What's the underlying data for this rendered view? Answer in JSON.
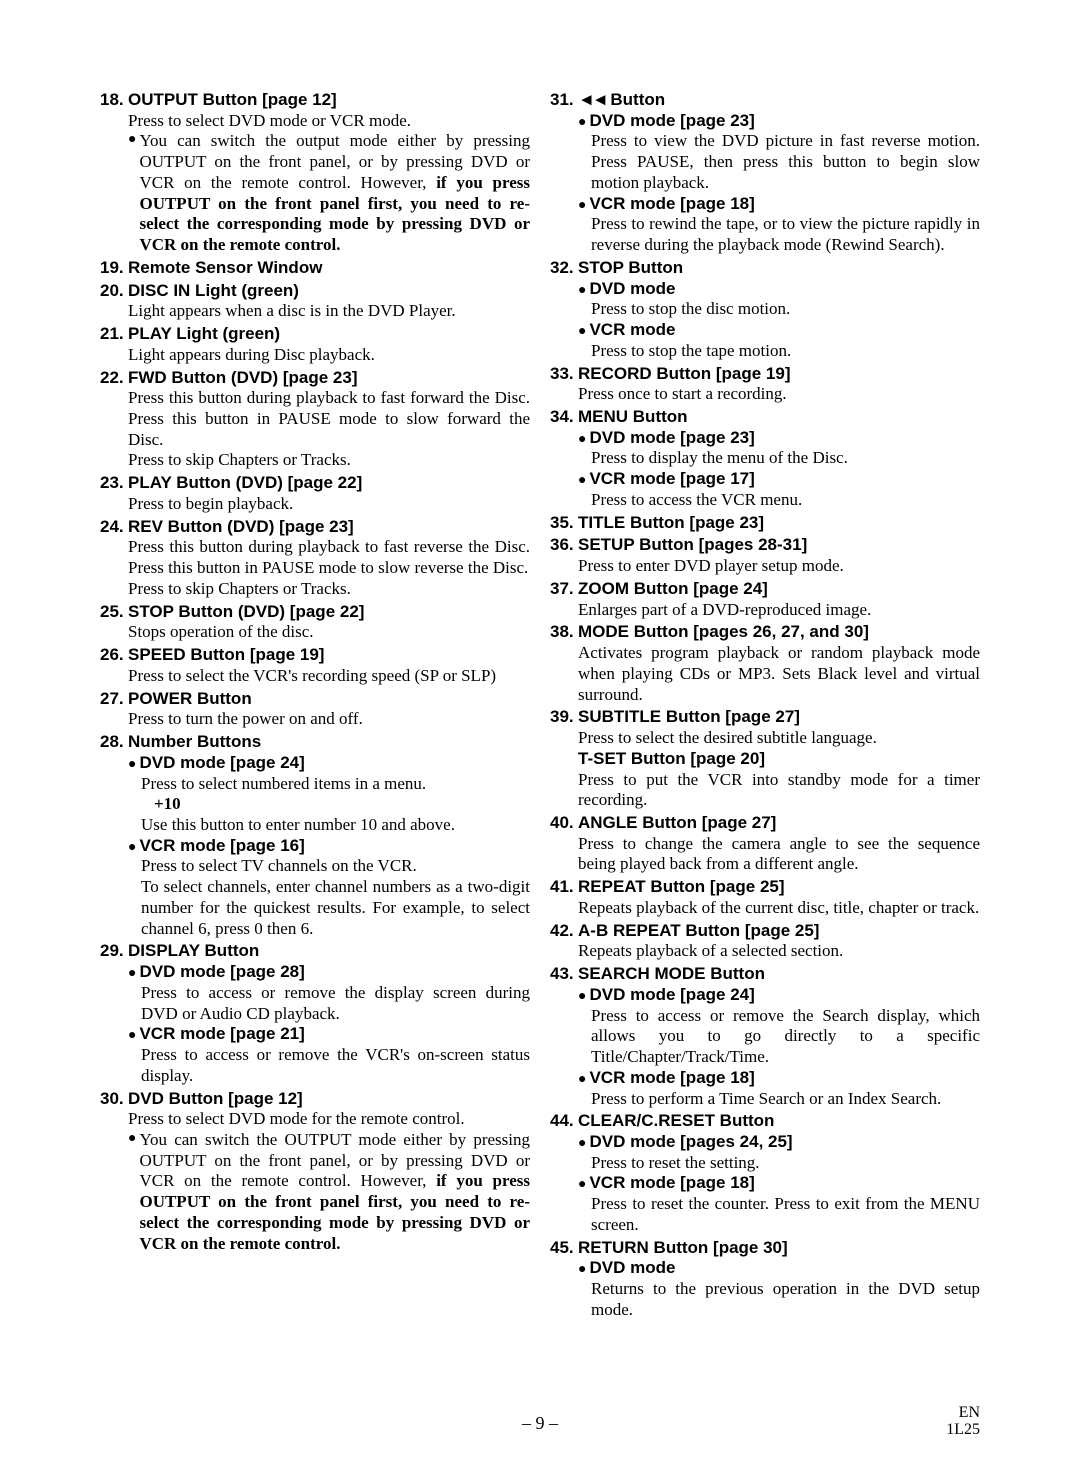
{
  "footer": {
    "page": "– 9 –",
    "en": "EN",
    "code": "1L25"
  },
  "rewind_glyph": "◄◄",
  "left": [
    {
      "n": "18.",
      "t": "OUTPUT Button [page 12]",
      "body": [
        "Press to select DVD mode or VCR mode."
      ],
      "subs": [
        {
          "bullet": true,
          "body": [
            "You can switch the output mode either by pressing OUTPUT on the front panel, or by pressing DVD or VCR on the remote control. However, <b>if you press OUTPUT on the front panel first, you need to re-select the corresponding mode by pressing DVD or VCR on the remote control.</b>"
          ]
        }
      ]
    },
    {
      "n": "19.",
      "t": "Remote Sensor Window"
    },
    {
      "n": "20.",
      "t": "DISC IN Light (green)",
      "body": [
        "Light appears  when a disc is in the DVD Player."
      ]
    },
    {
      "n": "21.",
      "t": "PLAY Light (green)",
      "body": [
        "Light appears during Disc playback."
      ]
    },
    {
      "n": "22.",
      "t": "FWD Button (DVD) [page 23]",
      "body": [
        "Press this button during playback to fast forward the Disc. Press this button in PAUSE mode to slow forward the Disc.",
        "Press to skip Chapters or Tracks."
      ]
    },
    {
      "n": "23.",
      "t": "PLAY Button (DVD) [page 22]",
      "body": [
        "Press to begin playback."
      ]
    },
    {
      "n": "24.",
      "t": "REV Button (DVD) [page 23]",
      "body": [
        "Press this button during playback to  fast reverse the Disc. Press this button in PAUSE mode to slow reverse the Disc.",
        "Press to skip Chapters or Tracks."
      ]
    },
    {
      "n": "25.",
      "t": "STOP Button (DVD) [page 22]",
      "body": [
        "Stops operation of the disc."
      ]
    },
    {
      "n": "26.",
      "t": "SPEED Button [page 19]",
      "body": [
        "Press to select the VCR's recording speed (SP or SLP)"
      ]
    },
    {
      "n": "27.",
      "t": "POWER Button",
      "body": [
        "Press to turn the power on and off."
      ]
    },
    {
      "n": "28.",
      "t": "Number Buttons",
      "subs": [
        {
          "bullet": true,
          "t": "DVD mode [page 24]",
          "body": [
            "Press to select numbered items in a menu.",
            "<span class='plus10'>+10</span>",
            "Use this button to enter number 10 and above."
          ]
        },
        {
          "bullet": true,
          "t": "VCR mode [page 16]",
          "body": [
            "Press to select TV channels on the VCR.",
            "To select channels, enter channel numbers as a two-digit number for the quickest results. For example, to select channel 6, press 0 then 6."
          ]
        }
      ]
    },
    {
      "n": "29.",
      "t": "DISPLAY Button",
      "subs": [
        {
          "bullet": true,
          "t": "DVD mode [page 28]",
          "body": [
            "Press to access or remove the display screen during DVD or Audio CD playback."
          ]
        },
        {
          "bullet": true,
          "t": "VCR mode [page 21]",
          "body": [
            "Press to access or remove the VCR's on-screen status display."
          ]
        }
      ]
    },
    {
      "n": "30.",
      "t": "DVD Button [page 12]",
      "body": [
        "Press to select DVD mode for the remote control."
      ],
      "subs": [
        {
          "bullet": true,
          "body": [
            "You can switch the OUTPUT mode either by pressing OUTPUT on the front panel, or by pressing DVD or VCR on the remote control. However, <b>if you press OUTPUT on the front panel first, you need to re-select the corresponding mode by pressing DVD or VCR on the remote control.</b>"
          ]
        }
      ]
    }
  ],
  "right": [
    {
      "n": "31.",
      "t": "REWIND Button",
      "rewind": true,
      "subs": [
        {
          "bullet": true,
          "t": "DVD mode [page 23]",
          "body": [
            "Press to view the DVD picture in fast reverse motion. Press PAUSE, then press this button to begin slow motion playback."
          ]
        },
        {
          "bullet": true,
          "t": "VCR mode [page 18]",
          "body": [
            "Press to rewind the tape, or to view the picture rapidly in reverse during the playback mode (Rewind Search)."
          ]
        }
      ]
    },
    {
      "n": "32.",
      "t": "STOP Button",
      "subs": [
        {
          "bullet": true,
          "t": "DVD mode",
          "body": [
            "Press to stop the disc motion."
          ]
        },
        {
          "bullet": true,
          "t": "VCR mode",
          "body": [
            "Press to stop the tape motion."
          ]
        }
      ]
    },
    {
      "n": "33.",
      "t": "RECORD Button [page 19]",
      "body": [
        "Press once to start a recording."
      ]
    },
    {
      "n": "34.",
      "t": "MENU Button",
      "subs": [
        {
          "bullet": true,
          "t": "DVD mode [page 23]",
          "body": [
            "Press to display the menu of the Disc."
          ]
        },
        {
          "bullet": true,
          "t": "VCR mode [page 17]",
          "body": [
            "Press to access the VCR menu."
          ]
        }
      ]
    },
    {
      "n": "35.",
      "t": "TITLE Button [page 23]"
    },
    {
      "n": "36.",
      "t": "SETUP Button [pages 28-31]",
      "body": [
        "Press to enter DVD player setup mode."
      ]
    },
    {
      "n": "37.",
      "t": "ZOOM Button [page 24]",
      "body": [
        "Enlarges part of a DVD-reproduced image."
      ]
    },
    {
      "n": "38.",
      "t": "MODE Button [pages 26, 27, and 30]",
      "body": [
        "Activates program playback or random playback mode when playing CDs or MP3. Sets Black level and virtual surround."
      ]
    },
    {
      "n": "39.",
      "t": "SUBTITLE Button [page 27]",
      "body": [
        "Press to select the desired subtitle language.",
        "<b style='font-family:Arial,Helvetica,sans-serif'>T-SET Button [page 20]</b>",
        "Press to put the VCR into standby mode for a timer recording."
      ]
    },
    {
      "n": "40.",
      "t": "ANGLE Button [page 27]",
      "body": [
        "Press to change the camera angle to see the sequence being played back from a different angle."
      ]
    },
    {
      "n": "41.",
      "t": "REPEAT Button [page 25]",
      "body": [
        "Repeats playback of the current disc, title, chapter or track."
      ]
    },
    {
      "n": "42.",
      "t": "A-B REPEAT Button [page 25]",
      "body": [
        "Repeats playback of a selected section."
      ]
    },
    {
      "n": "43.",
      "t": "SEARCH MODE Button",
      "subs": [
        {
          "bullet": true,
          "t": "DVD mode [page 24]",
          "body": [
            "Press to access or remove the Search display, which allows you to go directly to a specific Title/Chapter/Track/Time."
          ]
        },
        {
          "bullet": true,
          "t": "VCR mode [page 18]",
          "body": [
            "Press to perform a Time Search or an Index Search."
          ]
        }
      ]
    },
    {
      "n": "44.",
      "t": "CLEAR/C.RESET Button",
      "subs": [
        {
          "bullet": true,
          "t": "DVD mode [pages 24, 25]",
          "body": [
            "Press to reset the setting."
          ]
        },
        {
          "bullet": true,
          "t": "VCR mode [page 18]",
          "body": [
            "Press to reset the counter. Press to exit from the MENU screen."
          ]
        }
      ]
    },
    {
      "n": "45.",
      "t": "RETURN Button [page 30]",
      "subs": [
        {
          "bullet": true,
          "t": "DVD mode",
          "body": [
            "Returns to the previous operation in the DVD setup mode."
          ]
        }
      ]
    }
  ]
}
